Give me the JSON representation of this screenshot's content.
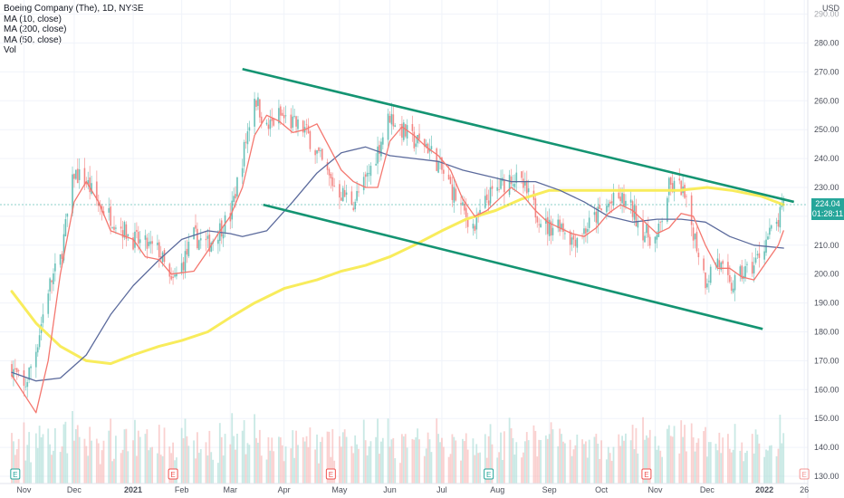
{
  "header": {
    "title": "Boeing Company (The), 1D, NYSE",
    "indicators": [
      "MA (10, close)",
      "MA (200, close)",
      "MA (50, close)",
      "Vol"
    ]
  },
  "price_axis": {
    "currency": "USD",
    "last_price": "224.04",
    "countdown": "01:28:11"
  },
  "colors": {
    "up": "#26a69a",
    "down": "#ef5350",
    "ma10": "#f4776f",
    "ma50": "#5b6a9c",
    "ma200": "#f8ec5c",
    "channel": "#149472",
    "badge": "#26a69a"
  },
  "events": [
    {
      "type": "E",
      "label": "E",
      "month_index": 0
    },
    {
      "type": "E",
      "label": "E",
      "month_index": 1
    },
    {
      "type": "E",
      "label": "E",
      "month_index": 2
    },
    {
      "type": "E",
      "label": "E",
      "month_index": 3
    },
    {
      "type": "E",
      "label": "E",
      "month_index": 4
    },
    {
      "type": "E",
      "label": "E",
      "month_index": 5
    }
  ],
  "chart_data": {
    "type": "line",
    "title": "Boeing Company (The), 1D, NYSE",
    "ylim": [
      128,
      292
    ],
    "y_ticks": [
      130,
      140,
      150,
      160,
      170,
      180,
      190,
      200,
      210,
      220,
      230,
      240,
      250,
      260,
      270,
      280,
      290
    ],
    "x_ticks": [
      "Nov",
      "Dec",
      "2021",
      "Feb",
      "Mar",
      "Apr",
      "May",
      "Jun",
      "Jul",
      "Aug",
      "Sep",
      "Oct",
      "Nov",
      "Dec",
      "2022",
      "26"
    ],
    "price_path": [
      [
        "2020-10-26",
        168
      ],
      [
        "2020-11-02",
        160
      ],
      [
        "2020-11-09",
        174
      ],
      [
        "2020-11-16",
        195
      ],
      [
        "2020-11-23",
        205
      ],
      [
        "2020-12-01",
        235
      ],
      [
        "2020-12-08",
        232
      ],
      [
        "2020-12-15",
        224
      ],
      [
        "2020-12-22",
        220
      ],
      [
        "2021-01-04",
        212
      ],
      [
        "2021-01-11",
        210
      ],
      [
        "2021-01-19",
        208
      ],
      [
        "2021-01-26",
        196
      ],
      [
        "2021-02-01",
        203
      ],
      [
        "2021-02-08",
        213
      ],
      [
        "2021-02-16",
        210
      ],
      [
        "2021-02-22",
        215
      ],
      [
        "2021-03-01",
        220
      ],
      [
        "2021-03-08",
        240
      ],
      [
        "2021-03-15",
        262
      ],
      [
        "2021-03-22",
        250
      ],
      [
        "2021-03-29",
        255
      ],
      [
        "2021-04-06",
        252
      ],
      [
        "2021-04-13",
        250
      ],
      [
        "2021-04-20",
        242
      ],
      [
        "2021-04-27",
        233
      ],
      [
        "2021-05-04",
        228
      ],
      [
        "2021-05-11",
        225
      ],
      [
        "2021-05-18",
        232
      ],
      [
        "2021-05-25",
        243
      ],
      [
        "2021-06-01",
        255
      ],
      [
        "2021-06-08",
        250
      ],
      [
        "2021-06-15",
        246
      ],
      [
        "2021-06-22",
        245
      ],
      [
        "2021-06-29",
        238
      ],
      [
        "2021-07-06",
        230
      ],
      [
        "2021-07-13",
        222
      ],
      [
        "2021-07-20",
        216
      ],
      [
        "2021-07-27",
        226
      ],
      [
        "2021-08-03",
        230
      ],
      [
        "2021-08-10",
        234
      ],
      [
        "2021-08-17",
        230
      ],
      [
        "2021-08-24",
        222
      ],
      [
        "2021-08-31",
        216
      ],
      [
        "2021-09-07",
        218
      ],
      [
        "2021-09-14",
        212
      ],
      [
        "2021-09-21",
        215
      ],
      [
        "2021-09-28",
        220
      ],
      [
        "2021-10-05",
        224
      ],
      [
        "2021-10-12",
        226
      ],
      [
        "2021-10-19",
        222
      ],
      [
        "2021-10-26",
        214
      ],
      [
        "2021-11-02",
        212
      ],
      [
        "2021-11-09",
        230
      ],
      [
        "2021-11-16",
        230
      ],
      [
        "2021-11-23",
        215
      ],
      [
        "2021-11-30",
        198
      ],
      [
        "2021-12-07",
        205
      ],
      [
        "2021-12-14",
        195
      ],
      [
        "2021-12-21",
        200
      ],
      [
        "2021-12-28",
        203
      ],
      [
        "2022-01-04",
        212
      ],
      [
        "2022-01-11",
        218
      ],
      [
        "2022-01-14",
        224
      ]
    ],
    "series": [
      {
        "name": "MA (10, close)",
        "points": [
          [
            "2020-10-26",
            165
          ],
          [
            "2020-11-09",
            152
          ],
          [
            "2020-11-16",
            170
          ],
          [
            "2020-11-23",
            200
          ],
          [
            "2020-12-01",
            225
          ],
          [
            "2020-12-08",
            232
          ],
          [
            "2020-12-15",
            225
          ],
          [
            "2020-12-22",
            215
          ],
          [
            "2021-01-04",
            212
          ],
          [
            "2021-01-11",
            206
          ],
          [
            "2021-01-19",
            205
          ],
          [
            "2021-01-26",
            200
          ],
          [
            "2021-02-08",
            201
          ],
          [
            "2021-02-16",
            208
          ],
          [
            "2021-02-22",
            214
          ],
          [
            "2021-03-01",
            220
          ],
          [
            "2021-03-08",
            230
          ],
          [
            "2021-03-15",
            248
          ],
          [
            "2021-03-22",
            255
          ],
          [
            "2021-03-29",
            253
          ],
          [
            "2021-04-06",
            249
          ],
          [
            "2021-04-13",
            250
          ],
          [
            "2021-04-20",
            252
          ],
          [
            "2021-04-27",
            244
          ],
          [
            "2021-05-04",
            236
          ],
          [
            "2021-05-11",
            232
          ],
          [
            "2021-05-18",
            230
          ],
          [
            "2021-05-25",
            230
          ],
          [
            "2021-06-01",
            246
          ],
          [
            "2021-06-08",
            251
          ],
          [
            "2021-06-15",
            248
          ],
          [
            "2021-06-22",
            244
          ],
          [
            "2021-06-29",
            241
          ],
          [
            "2021-07-06",
            236
          ],
          [
            "2021-07-13",
            226
          ],
          [
            "2021-07-20",
            220
          ],
          [
            "2021-07-27",
            222
          ],
          [
            "2021-08-03",
            226
          ],
          [
            "2021-08-10",
            230
          ],
          [
            "2021-08-17",
            227
          ],
          [
            "2021-08-24",
            222
          ],
          [
            "2021-08-31",
            218
          ],
          [
            "2021-09-07",
            216
          ],
          [
            "2021-09-14",
            214
          ],
          [
            "2021-09-21",
            213
          ],
          [
            "2021-09-28",
            216
          ],
          [
            "2021-10-05",
            221
          ],
          [
            "2021-10-12",
            224
          ],
          [
            "2021-10-19",
            222
          ],
          [
            "2021-10-26",
            218
          ],
          [
            "2021-11-02",
            214
          ],
          [
            "2021-11-09",
            216
          ],
          [
            "2021-11-16",
            221
          ],
          [
            "2021-11-23",
            220
          ],
          [
            "2021-11-30",
            210
          ],
          [
            "2021-12-07",
            202
          ],
          [
            "2021-12-14",
            202
          ],
          [
            "2021-12-21",
            199
          ],
          [
            "2021-12-28",
            198
          ],
          [
            "2022-01-04",
            204
          ],
          [
            "2022-01-11",
            210
          ],
          [
            "2022-01-14",
            215
          ]
        ]
      },
      {
        "name": "MA (50, close)",
        "points": [
          [
            "2020-10-26",
            166
          ],
          [
            "2020-11-09",
            163
          ],
          [
            "2020-11-23",
            164
          ],
          [
            "2020-12-08",
            172
          ],
          [
            "2020-12-22",
            186
          ],
          [
            "2021-01-04",
            196
          ],
          [
            "2021-01-19",
            205
          ],
          [
            "2021-02-01",
            212
          ],
          [
            "2021-02-16",
            215
          ],
          [
            "2021-03-01",
            214
          ],
          [
            "2021-03-08",
            213
          ],
          [
            "2021-03-22",
            215
          ],
          [
            "2021-04-06",
            225
          ],
          [
            "2021-04-20",
            235
          ],
          [
            "2021-05-04",
            242
          ],
          [
            "2021-05-18",
            244
          ],
          [
            "2021-06-01",
            241
          ],
          [
            "2021-06-15",
            240
          ],
          [
            "2021-06-29",
            239
          ],
          [
            "2021-07-13",
            236
          ],
          [
            "2021-07-27",
            234
          ],
          [
            "2021-08-10",
            232
          ],
          [
            "2021-08-24",
            232
          ],
          [
            "2021-09-07",
            229
          ],
          [
            "2021-09-21",
            225
          ],
          [
            "2021-10-05",
            220
          ],
          [
            "2021-10-19",
            218
          ],
          [
            "2021-11-02",
            219
          ],
          [
            "2021-11-16",
            219
          ],
          [
            "2021-11-30",
            218
          ],
          [
            "2021-12-14",
            213
          ],
          [
            "2021-12-28",
            210
          ],
          [
            "2022-01-14",
            209
          ]
        ]
      },
      {
        "name": "MA (200, close)",
        "points": [
          [
            "2020-10-26",
            194
          ],
          [
            "2020-11-09",
            183
          ],
          [
            "2020-11-23",
            175
          ],
          [
            "2020-12-08",
            170
          ],
          [
            "2020-12-22",
            169
          ],
          [
            "2021-01-04",
            172
          ],
          [
            "2021-01-19",
            175
          ],
          [
            "2021-02-01",
            177
          ],
          [
            "2021-02-16",
            180
          ],
          [
            "2021-03-01",
            185
          ],
          [
            "2021-03-15",
            190
          ],
          [
            "2021-04-01",
            195
          ],
          [
            "2021-04-20",
            198
          ],
          [
            "2021-05-04",
            201
          ],
          [
            "2021-05-18",
            203
          ],
          [
            "2021-06-01",
            206
          ],
          [
            "2021-06-15",
            210
          ],
          [
            "2021-07-01",
            215
          ],
          [
            "2021-07-15",
            219
          ],
          [
            "2021-08-01",
            222
          ],
          [
            "2021-08-16",
            226
          ],
          [
            "2021-09-01",
            229
          ],
          [
            "2021-09-15",
            229
          ],
          [
            "2021-10-01",
            229
          ],
          [
            "2021-10-15",
            229
          ],
          [
            "2021-11-01",
            229
          ],
          [
            "2021-11-15",
            229
          ],
          [
            "2021-12-01",
            230
          ],
          [
            "2021-12-15",
            229
          ],
          [
            "2022-01-01",
            227
          ],
          [
            "2022-01-14",
            224
          ]
        ]
      }
    ],
    "trendlines": [
      {
        "from": [
          "2021-03-08",
          271
        ],
        "to": [
          "2022-01-20",
          225
        ]
      },
      {
        "from": [
          "2021-03-20",
          224
        ],
        "to": [
          "2022-01-02",
          181
        ]
      }
    ],
    "volume_range": [
      0,
      100
    ]
  }
}
